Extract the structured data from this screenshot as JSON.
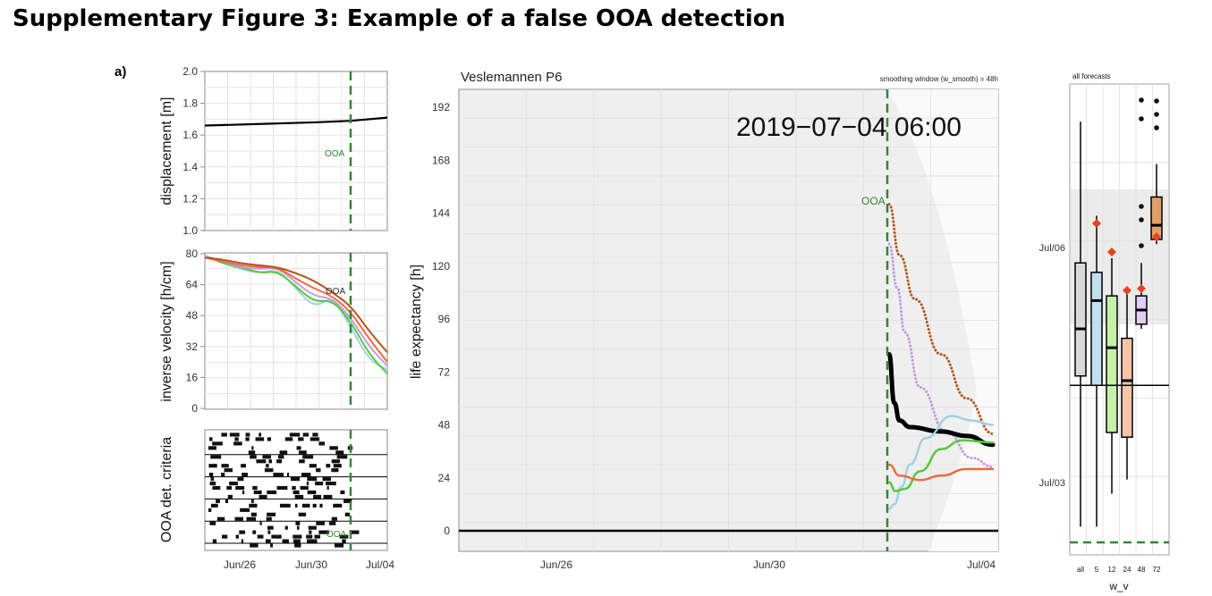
{
  "figure_title": "Supplementary Figure 3: Example of a false OOA detection",
  "panel_label": "a)",
  "colors": {
    "green": "#2e8b2e",
    "orange": "#ee6b3b",
    "brown": "#b4561c",
    "purple": "#c39be0",
    "lightblue": "#9fd0e8",
    "lime": "#55c93a",
    "grey": "#cfcfcf"
  },
  "chart_data": [
    {
      "type": "line",
      "id": "displacement",
      "ylabel": "displacement [m]",
      "ylim": [
        1.0,
        2.0
      ],
      "yticks": [
        "1.0",
        "1.2",
        "1.4",
        "1.6",
        "1.8",
        "2.0"
      ],
      "xticks": [
        "Jun/26",
        "Jun/30",
        "Jul/04"
      ],
      "annotation": "OOA",
      "series": [
        {
          "values": [
            [
              0,
              1.66
            ],
            [
              0.3,
              1.67
            ],
            [
              0.6,
              1.68
            ],
            [
              0.8,
              1.69
            ],
            [
              1.0,
              1.71
            ]
          ]
        }
      ]
    },
    {
      "type": "line",
      "id": "inverse-velocity",
      "ylabel": "inverse velocity [h/cm]",
      "ylim": [
        0,
        80
      ],
      "yticks": [
        "0",
        "16",
        "32",
        "48",
        "64",
        "80"
      ],
      "annotation": "OOA",
      "series": [
        {
          "values": [
            [
              0,
              79
            ],
            [
              0.1,
              75
            ],
            [
              0.2,
              72
            ],
            [
              0.3,
              70
            ],
            [
              0.4,
              72
            ],
            [
              0.5,
              62
            ],
            [
              0.6,
              52
            ],
            [
              0.7,
              58
            ],
            [
              0.8,
              42
            ],
            [
              0.9,
              25
            ],
            [
              1.0,
              20
            ]
          ]
        },
        {
          "values": [
            [
              0,
              79
            ],
            [
              0.1,
              75
            ],
            [
              0.2,
              73
            ],
            [
              0.3,
              70
            ],
            [
              0.4,
              71
            ],
            [
              0.5,
              63
            ],
            [
              0.6,
              55
            ],
            [
              0.7,
              56
            ],
            [
              0.8,
              45
            ],
            [
              0.9,
              28
            ],
            [
              1.0,
              18
            ]
          ]
        },
        {
          "values": [
            [
              0,
              79
            ],
            [
              0.1,
              76
            ],
            [
              0.2,
              73
            ],
            [
              0.3,
              72
            ],
            [
              0.4,
              73
            ],
            [
              0.5,
              65
            ],
            [
              0.6,
              58
            ],
            [
              0.7,
              57
            ],
            [
              0.8,
              47
            ],
            [
              0.9,
              32
            ],
            [
              1.0,
              22
            ]
          ]
        },
        {
          "values": [
            [
              0,
              78
            ],
            [
              0.1,
              76
            ],
            [
              0.2,
              74
            ],
            [
              0.3,
              73
            ],
            [
              0.4,
              73
            ],
            [
              0.5,
              67
            ],
            [
              0.6,
              62
            ],
            [
              0.7,
              58
            ],
            [
              0.8,
              50
            ],
            [
              0.9,
              36
            ],
            [
              1.0,
              24
            ]
          ]
        },
        {
          "values": [
            [
              0,
              78
            ],
            [
              0.1,
              77
            ],
            [
              0.2,
              75
            ],
            [
              0.3,
              74
            ],
            [
              0.4,
              73
            ],
            [
              0.5,
              70
            ],
            [
              0.6,
              66
            ],
            [
              0.7,
              60
            ],
            [
              0.8,
              53
            ],
            [
              0.9,
              40
            ],
            [
              1.0,
              29
            ]
          ]
        }
      ]
    },
    {
      "type": "heatmap",
      "id": "ooa-criteria",
      "ylabel": "OOA det. criteria",
      "annotation": "OOA"
    },
    {
      "type": "line",
      "id": "life-expectancy",
      "title": "Veslemannen P6",
      "subtitle": "smoothing window (w_smooth) = 48h",
      "timestamp": "2019−07−04 06:00",
      "annotation": "OOA",
      "ylabel": "life expectancy [h]",
      "ylim": [
        -10,
        204
      ],
      "yticks": [
        "0",
        "24",
        "48",
        "72",
        "96",
        "120",
        "144",
        "168",
        "192"
      ],
      "xticks": [
        "Jun/26",
        "Jun/30",
        "Jul/04"
      ],
      "series": [
        {
          "values": [
            [
              0,
              148
            ],
            [
              0.1,
              125
            ],
            [
              0.25,
              105
            ],
            [
              0.5,
              80
            ],
            [
              0.75,
              60
            ],
            [
              1.0,
              44
            ]
          ]
        },
        {
          "values": [
            [
              0,
              130
            ],
            [
              0.08,
              110
            ],
            [
              0.15,
              90
            ],
            [
              0.3,
              65
            ],
            [
              0.55,
              45
            ],
            [
              0.8,
              33
            ],
            [
              1.0,
              29
            ]
          ]
        },
        {
          "values": [
            [
              0,
              80
            ],
            [
              0.05,
              58
            ],
            [
              0.1,
              50
            ],
            [
              0.2,
              47
            ],
            [
              0.5,
              45
            ],
            [
              0.75,
              43
            ],
            [
              1.0,
              39
            ]
          ]
        },
        {
          "values": [
            [
              0,
              10
            ],
            [
              0.05,
              12
            ],
            [
              0.12,
              20
            ],
            [
              0.2,
              30
            ],
            [
              0.35,
              42
            ],
            [
              0.6,
              52
            ],
            [
              0.8,
              50
            ],
            [
              1.0,
              48
            ]
          ]
        },
        {
          "values": [
            [
              0,
              22
            ],
            [
              0.06,
              18
            ],
            [
              0.15,
              19
            ],
            [
              0.3,
              27
            ],
            [
              0.5,
              37
            ],
            [
              0.7,
              41
            ],
            [
              1.0,
              40
            ]
          ]
        },
        {
          "values": [
            [
              0,
              30
            ],
            [
              0.1,
              25
            ],
            [
              0.3,
              23
            ],
            [
              0.5,
              25
            ],
            [
              0.75,
              28
            ],
            [
              1.0,
              28
            ]
          ]
        }
      ]
    },
    {
      "type": "box",
      "id": "all-forecasts",
      "title": "all forecasts",
      "xlabel": "w_v",
      "categories": [
        "all",
        "5",
        "12",
        "24",
        "48",
        "72"
      ],
      "yticks": [
        "Jul/06",
        "Jul/03"
      ],
      "boxes": [
        {
          "q1": 0.38,
          "median": 0.48,
          "q3": 0.62,
          "lo": 0.06,
          "hi": 0.92
        },
        {
          "q1": 0.36,
          "median": 0.54,
          "q3": 0.6,
          "lo": 0.06,
          "hi": 0.72
        },
        {
          "q1": 0.26,
          "median": 0.44,
          "q3": 0.55,
          "lo": 0.13,
          "hi": 0.63
        },
        {
          "q1": 0.25,
          "median": 0.37,
          "q3": 0.46,
          "lo": 0.16,
          "hi": 0.56
        },
        {
          "q1": 0.49,
          "median": 0.52,
          "q3": 0.55,
          "lo": 0.48,
          "hi": 0.62
        },
        {
          "q1": 0.67,
          "median": 0.7,
          "q3": 0.76,
          "lo": 0.66,
          "hi": 0.83
        }
      ],
      "hline": 0.36
    }
  ]
}
